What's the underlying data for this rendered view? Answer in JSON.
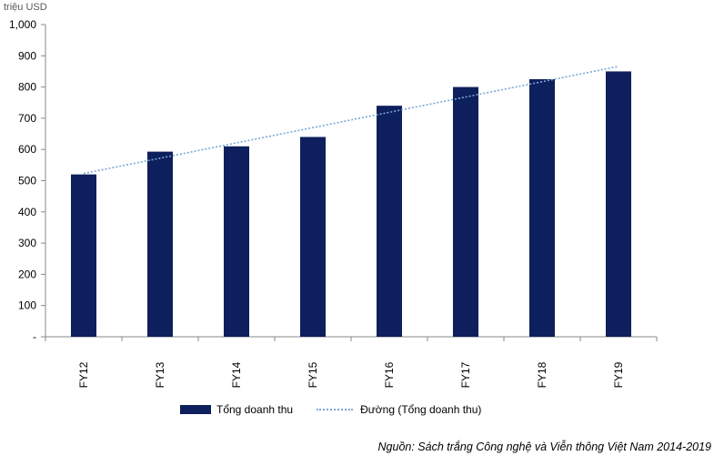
{
  "chart_data": {
    "type": "bar",
    "unit_label": "triệu USD",
    "categories": [
      "FY12",
      "FY13",
      "FY14",
      "FY15",
      "FY16",
      "FY17",
      "FY18",
      "FY19"
    ],
    "series": [
      {
        "name": "Tổng doanh thu",
        "type": "bar",
        "values": [
          520,
          593,
          610,
          640,
          740,
          800,
          825,
          850
        ],
        "color": "#0d1f5c"
      },
      {
        "name": "Đường (Tổng doanh thu)",
        "type": "trendline",
        "style": "dotted",
        "values": [
          523,
          572,
          621,
          670,
          719,
          768,
          817,
          866
        ],
        "color": "#7aa6d6"
      }
    ],
    "y_ticks": [
      "-",
      "100",
      "200",
      "300",
      "400",
      "500",
      "600",
      "700",
      "800",
      "900",
      "1,000"
    ],
    "ylim": [
      0,
      1000
    ],
    "grid": false,
    "legend_position": "bottom"
  },
  "source_note": "Nguồn: Sách trắng Công nghệ và Viễn thông Việt Nam 2014-2019"
}
